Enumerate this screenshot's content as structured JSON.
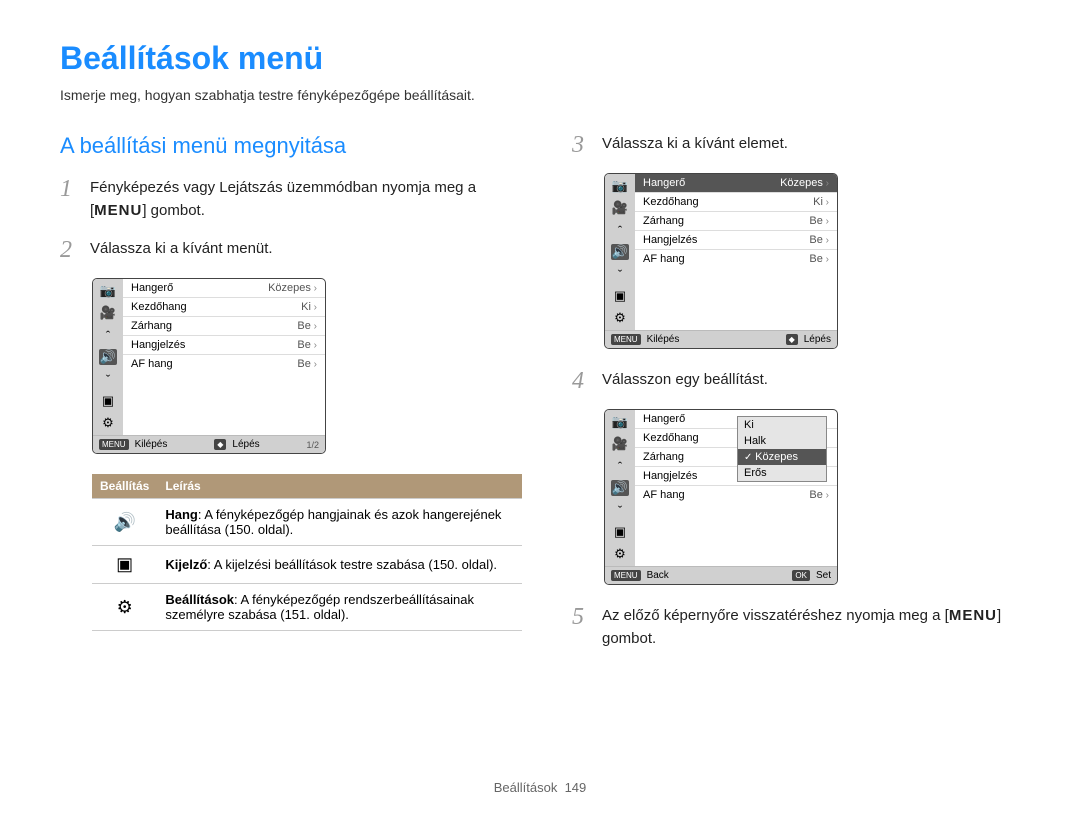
{
  "page_title": "Beállítások menü",
  "intro": "Ismerje meg, hogyan szabhatja testre fényképezőgépe beállításait.",
  "section_heading": "A beállítási menü megnyitása",
  "menu_word": "MENU",
  "gombot": " gombot.",
  "steps": {
    "s1_a": "Fényképezés vagy Lejátszás üzemmódban nyomja meg a [",
    "s1_b": "]",
    "s2": "Válassza ki a kívánt menüt.",
    "s3": "Válassza ki a kívánt elemet.",
    "s4": "Válasszon egy beállítást.",
    "s5_a": "Az előző képernyőre visszatéréshez nyomja meg a [",
    "s5_b": "]"
  },
  "step_numbers": {
    "n1": "1",
    "n2": "2",
    "n3": "3",
    "n4": "4",
    "n5": "5"
  },
  "lcd_common": {
    "rows": [
      {
        "label": "Hangerő",
        "value": "Közepes"
      },
      {
        "label": "Kezdőhang",
        "value": "Ki"
      },
      {
        "label": "Zárhang",
        "value": "Be"
      },
      {
        "label": "Hangjelzés",
        "value": "Be"
      },
      {
        "label": "AF hang",
        "value": "Be"
      }
    ],
    "exit": "Kilépés",
    "step": "Lépés",
    "menu_btn": "MENU",
    "nav_btn": "◆",
    "page": "1/2"
  },
  "lcd4": {
    "back": "Back",
    "set": "Set",
    "ok": "OK",
    "rows": [
      {
        "label": "Hangerő",
        "value": ""
      },
      {
        "label": "Kezdőhang",
        "value": ""
      },
      {
        "label": "Zárhang",
        "value": ""
      },
      {
        "label": "Hangjelzés",
        "value": ""
      },
      {
        "label": "AF hang",
        "value": "Be"
      }
    ],
    "popup": [
      "Ki",
      "Halk",
      "Közepes",
      "Erős"
    ],
    "popup_selected_index": 2
  },
  "def_table": {
    "head1": "Beállítás",
    "head2": "Leírás",
    "rows": [
      {
        "icon": "🔊",
        "bold": "Hang",
        "text": ": A fényképezőgép hangjainak és azok hangerejének beállítása (150. oldal)."
      },
      {
        "icon": "▣",
        "bold": "Kijelző",
        "text": ": A kijelzési beállítások testre szabása (150. oldal)."
      },
      {
        "icon": "⚙",
        "bold": "Beállítások",
        "text": ": A fényképezőgép rendszerbeállításainak személyre szabása (151. oldal)."
      }
    ]
  },
  "footer": {
    "section": "Beállítások",
    "page": "149"
  },
  "colors": {
    "heading_blue": "#1a8cff",
    "table_header_bg": "#b09878",
    "lcd_side_bg": "#d0d0d0",
    "lcd_highlight": "#555555"
  }
}
